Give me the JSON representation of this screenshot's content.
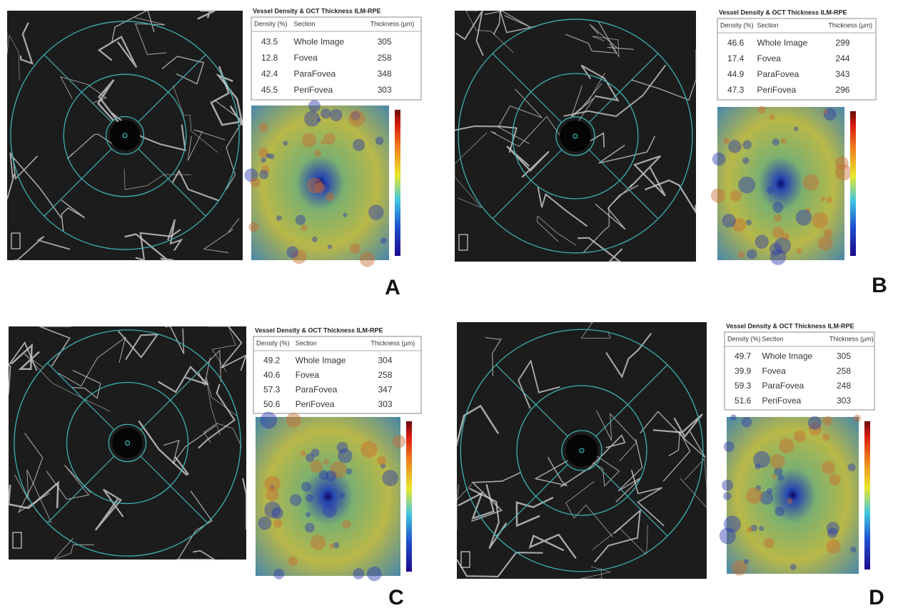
{
  "table_title": "Vessel Density & OCT Thickness ILM-RPE",
  "columns": [
    "Density (%)",
    "Section",
    "Thickness (µm)"
  ],
  "panels": [
    {
      "label": "A",
      "rows": [
        [
          43.5,
          "Whole Image",
          305
        ],
        [
          12.8,
          "Fovea",
          258
        ],
        [
          42.4,
          "ParaFovea",
          348
        ],
        [
          45.5,
          "PeriFovea",
          303
        ]
      ]
    },
    {
      "label": "B",
      "rows": [
        [
          46.6,
          "Whole Image",
          299
        ],
        [
          17.4,
          "Fovea",
          244
        ],
        [
          44.9,
          "ParaFovea",
          343
        ],
        [
          47.3,
          "PeriFovea",
          296
        ]
      ]
    },
    {
      "label": "C",
      "rows": [
        [
          49.2,
          "Whole Image",
          304
        ],
        [
          40.6,
          "Fovea",
          258
        ],
        [
          57.3,
          "ParaFovea",
          347
        ],
        [
          50.6,
          "PeriFovea",
          303
        ]
      ]
    },
    {
      "label": "D",
      "rows": [
        [
          49.7,
          "Whole Image",
          305
        ],
        [
          39.9,
          "Fovea",
          258
        ],
        [
          59.3,
          "ParaFovea",
          248
        ],
        [
          51.6,
          "PeriFovea",
          303
        ]
      ]
    }
  ]
}
